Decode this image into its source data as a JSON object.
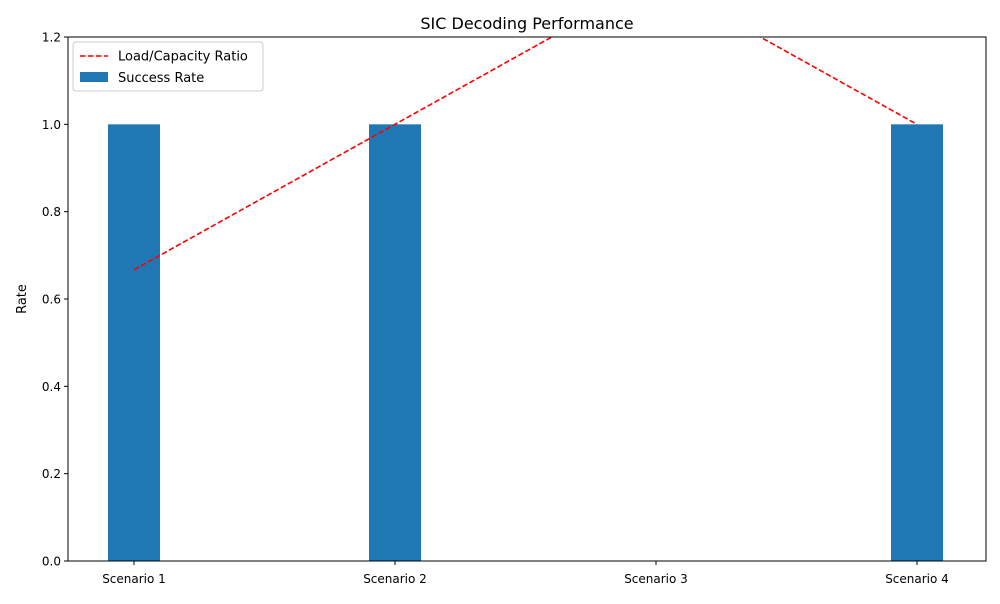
{
  "chart_data": {
    "type": "bar",
    "title": "SIC Decoding Performance",
    "xlabel": "",
    "ylabel": "Rate",
    "categories": [
      "Scenario 1",
      "Scenario 2",
      "Scenario 3",
      "Scenario 4"
    ],
    "ylim": [
      0,
      1.2
    ],
    "yticks": [
      "0.0",
      "0.2",
      "0.4",
      "0.6",
      "0.8",
      "1.0",
      "1.2"
    ],
    "ytick_values": [
      0,
      0.2,
      0.4,
      0.6,
      0.8,
      1.0,
      1.2
    ],
    "grid": false,
    "legend_position": "top-left",
    "series": [
      {
        "name": "Success Rate",
        "type": "bar",
        "color": "#1f77b4",
        "values": [
          1.0,
          1.0,
          0.0,
          1.0
        ]
      },
      {
        "name": "Load/Capacity Ratio",
        "type": "line",
        "style": "dashed",
        "color": "#ff0000",
        "values": [
          0.667,
          1.0,
          1.333,
          1.0
        ]
      }
    ]
  }
}
